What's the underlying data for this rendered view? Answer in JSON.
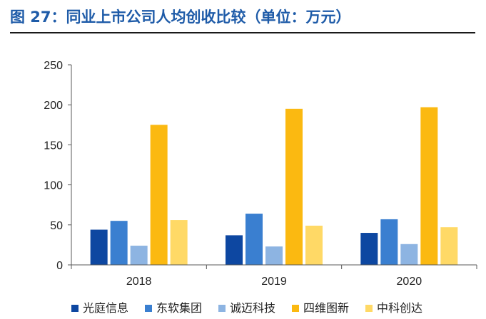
{
  "figure_title": "图 27：同业上市公司人均创收比较（单位：万元）",
  "chart_data": {
    "type": "bar",
    "categories": [
      "2018",
      "2019",
      "2020"
    ],
    "series": [
      {
        "name": "光庭信息",
        "color": "#0d47a1",
        "values": [
          44,
          37,
          40
        ]
      },
      {
        "name": "东软集团",
        "color": "#3a7fd0",
        "values": [
          55,
          64,
          57
        ]
      },
      {
        "name": "诚迈科技",
        "color": "#8db4e2",
        "values": [
          24,
          23,
          26
        ]
      },
      {
        "name": "四维图新",
        "color": "#fbb911",
        "values": [
          175,
          195,
          197
        ]
      },
      {
        "name": "中科创达",
        "color": "#ffd966",
        "values": [
          56,
          49,
          47
        ]
      }
    ],
    "yticks": [
      0,
      50,
      100,
      150,
      200,
      250
    ],
    "ylim": [
      0,
      250
    ],
    "grid": false,
    "legend_position": "bottom"
  }
}
